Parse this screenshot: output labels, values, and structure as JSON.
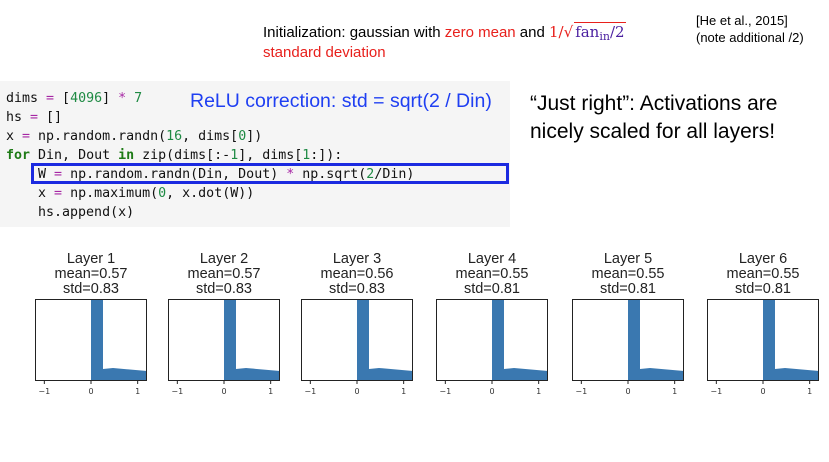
{
  "header": {
    "line1_prefix": "Initialization: gaussian with ",
    "line1_red": "zero mean",
    "line1_mid": " and ",
    "formula": {
      "one": "1/",
      "sqrt_symbol": "√",
      "fan": "fan",
      "sub": "in",
      "divisor": "/2"
    },
    "line2": "standard deviation",
    "citation_line1": "[He et al., 2015]",
    "citation_line2": "(note additional /2)"
  },
  "code": {
    "lines": [
      "dims = [4096] * 7",
      "hs = []",
      "x = np.random.randn(16, dims[0])",
      "for Din, Dout in zip(dims[:-1], dims[1:]):",
      "    W = np.random.randn(Din, Dout) * np.sqrt(2/Din)",
      "    x = np.maximum(0, x.dot(W))",
      "    hs.append(x)"
    ],
    "relu_note": "ReLU correction: std = sqrt(2 / Din)"
  },
  "conclusion": "“Just right”: Activations are nicely scaled for all layers!",
  "histograms": {
    "bar_color": "#3a78b0",
    "x_ticks": [
      "−1",
      "0",
      "1"
    ],
    "xlim": [
      -1.2,
      1.2
    ],
    "layers": [
      {
        "title": "Layer 1",
        "mean": "mean=0.57",
        "std": "std=0.83"
      },
      {
        "title": "Layer 2",
        "mean": "mean=0.57",
        "std": "std=0.83"
      },
      {
        "title": "Layer 3",
        "mean": "mean=0.56",
        "std": "std=0.83"
      },
      {
        "title": "Layer 4",
        "mean": "mean=0.55",
        "std": "std=0.81"
      },
      {
        "title": "Layer 5",
        "mean": "mean=0.55",
        "std": "std=0.81"
      },
      {
        "title": "Layer 6",
        "mean": "mean=0.55",
        "std": "std=0.81"
      }
    ]
  }
}
